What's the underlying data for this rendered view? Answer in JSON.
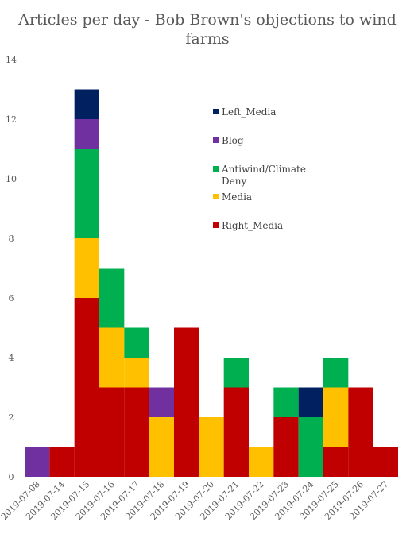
{
  "chart_data": {
    "type": "bar",
    "stacked": true,
    "title_lines": [
      "Articles per day - Bob Brown's objections to wind",
      "farms"
    ],
    "xlabel": "",
    "ylabel": "",
    "ylim": [
      0,
      14
    ],
    "yticks": [
      "0",
      "2",
      "4",
      "6",
      "8",
      "10",
      "12",
      "14"
    ],
    "grid": false,
    "legend_position": "top-right",
    "categories": [
      "2019-07-08",
      "2019-07-14",
      "2019-07-15",
      "2019-07-16",
      "2019-07-17",
      "2019-07-18",
      "2019-07-19",
      "2019-07-20",
      "2019-07-21",
      "2019-07-22",
      "2019-07-23",
      "2019-07-24",
      "2019-07-25",
      "2019-07-26",
      "2019-07-27"
    ],
    "series": [
      {
        "name": "Right_Media",
        "color": "#c00000",
        "values": [
          0,
          1,
          6,
          3,
          3,
          0,
          5,
          0,
          3,
          0,
          2,
          0,
          1,
          3,
          1
        ]
      },
      {
        "name": "Media",
        "color": "#ffc000",
        "values": [
          0,
          0,
          2,
          2,
          1,
          2,
          0,
          2,
          0,
          1,
          0,
          0,
          2,
          0,
          0
        ]
      },
      {
        "name": "Antiwind/Climate Deny",
        "color": "#00b050",
        "values": [
          0,
          0,
          3,
          2,
          1,
          0,
          0,
          0,
          1,
          0,
          1,
          2,
          1,
          0,
          0
        ]
      },
      {
        "name": "Blog",
        "color": "#7030a0",
        "values": [
          1,
          0,
          1,
          0,
          0,
          1,
          0,
          0,
          0,
          0,
          0,
          0,
          0,
          0,
          0
        ]
      },
      {
        "name": "Left_Media",
        "color": "#002060",
        "values": [
          0,
          0,
          1,
          0,
          0,
          0,
          0,
          0,
          0,
          0,
          0,
          1,
          0,
          0,
          0
        ]
      }
    ],
    "legend_order": [
      {
        "lines": [
          "Left_Media"
        ],
        "color": "#002060"
      },
      {
        "lines": [
          "Blog"
        ],
        "color": "#7030a0"
      },
      {
        "lines": [
          "Antiwind/Climate",
          "Deny"
        ],
        "color": "#00b050"
      },
      {
        "lines": [
          "Media"
        ],
        "color": "#ffc000"
      },
      {
        "lines": [
          "Right_Media"
        ],
        "color": "#c00000"
      }
    ]
  }
}
